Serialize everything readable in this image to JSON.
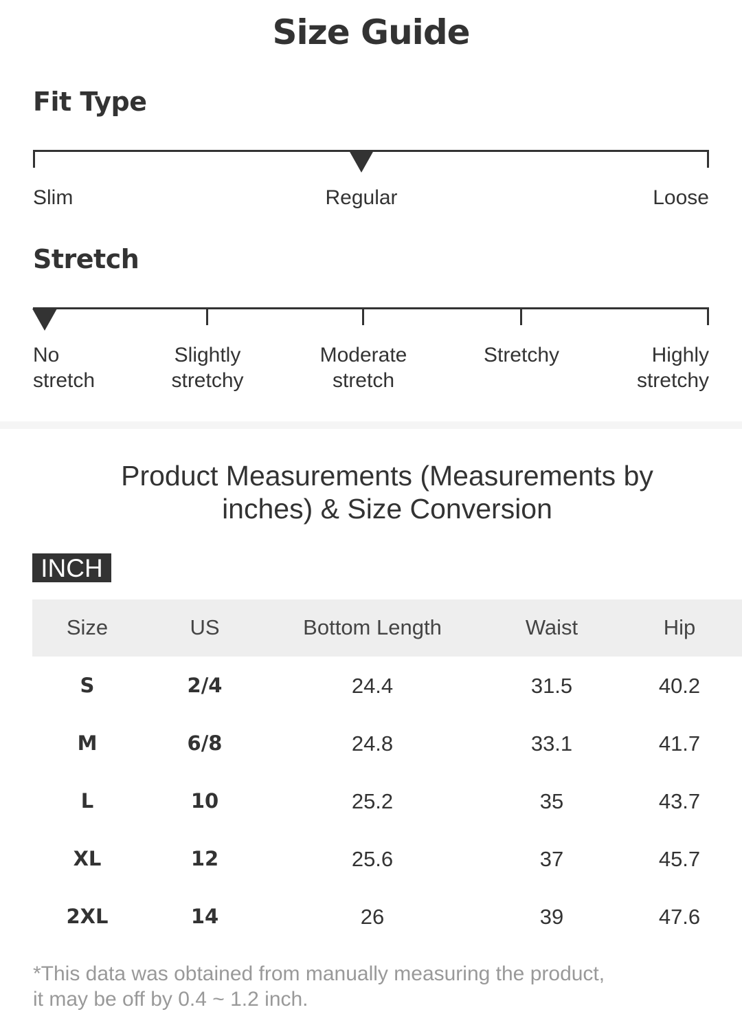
{
  "title": "Size Guide",
  "fit_type": {
    "heading": "Fit Type",
    "labels": [
      "Slim",
      "Regular",
      "Loose"
    ],
    "selected": "Regular"
  },
  "stretch": {
    "heading": "Stretch",
    "labels": [
      [
        "No",
        "stretch"
      ],
      [
        "Slightly",
        "stretchy"
      ],
      [
        "Moderate",
        "stretch"
      ],
      [
        "Stretchy",
        ""
      ],
      [
        "Highly",
        "stretchy"
      ]
    ],
    "selected": "No stretch"
  },
  "measurements": {
    "title_line1": "Product Measurements (Measurements by",
    "title_line2": "inches) & Size Conversion",
    "unit_badge": "INCH",
    "columns": [
      "Size",
      "US",
      "Bottom Length",
      "Waist",
      "Hip"
    ],
    "rows": [
      [
        "S",
        "2/4",
        "24.4",
        "31.5",
        "40.2"
      ],
      [
        "M",
        "6/8",
        "24.8",
        "33.1",
        "41.7"
      ],
      [
        "L",
        "10",
        "25.2",
        "35",
        "43.7"
      ],
      [
        "XL",
        "12",
        "25.6",
        "37",
        "45.7"
      ],
      [
        "2XL",
        "14",
        "26",
        "39",
        "47.6"
      ]
    ],
    "note_line1": "*This data was obtained from manually measuring the product,",
    "note_line2": " it may be off by 0.4 ~ 1.2 inch."
  }
}
